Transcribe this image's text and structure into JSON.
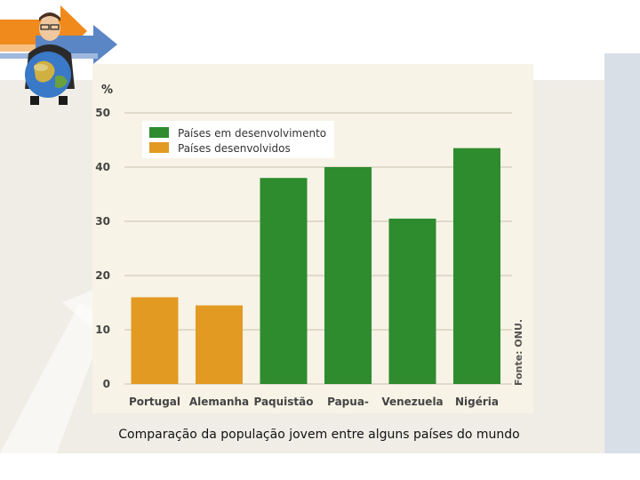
{
  "caption": "Comparação da população jovem entre alguns países do mundo",
  "chart_data": {
    "type": "bar",
    "ylabel": "%",
    "ylim": [
      0,
      50
    ],
    "yticks": [
      0,
      10,
      20,
      30,
      40,
      50
    ],
    "categories": [
      "Portugal",
      "Alemanha",
      "Paquistão",
      "Papua-",
      "Venezuela",
      "Nigéria"
    ],
    "values": [
      16,
      14.5,
      38,
      40,
      30.5,
      43.5
    ],
    "groups": [
      "developed",
      "developed",
      "developing",
      "developing",
      "developing",
      "developing"
    ],
    "legend": [
      {
        "key": "developing",
        "label": "Países em desenvolvimento",
        "color": "#2e8b2e"
      },
      {
        "key": "developed",
        "label": "Países desenvolvidos",
        "color": "#e39a23"
      }
    ],
    "source": "Fonte: ONU.",
    "grid": true,
    "legend_position": "top-left"
  }
}
